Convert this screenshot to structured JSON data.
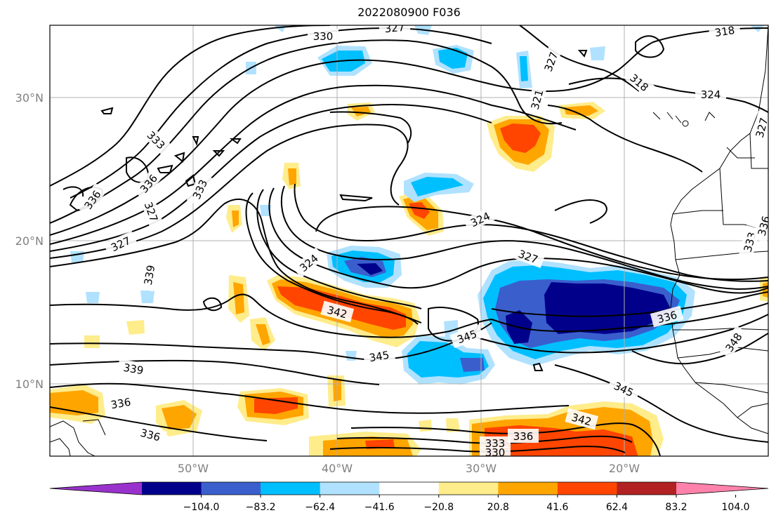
{
  "title": "2022080900 F036",
  "map": {
    "lat_labels": [
      "30°N",
      "20°N",
      "10°N"
    ],
    "lon_labels": [
      "50°W",
      "40°W",
      "30°W",
      "20°W"
    ]
  },
  "colorbar": {
    "colors": [
      "#9932CC",
      "#00008B",
      "#3A5FCD",
      "#00BFFF",
      "#B0E2FF",
      "#FFFFFF",
      "#FFEC8B",
      "#FFA500",
      "#FF4500",
      "#B22222",
      "#FF82AB"
    ],
    "tick_labels": [
      "−104.0",
      "−83.2",
      "−62.4",
      "−41.6",
      "−20.8",
      "20.8",
      "41.6",
      "62.4",
      "83.2",
      "104.0"
    ]
  },
  "contour_labels": [
    "330",
    "327",
    "318",
    "327",
    "321",
    "318",
    "324",
    "333",
    "336",
    "336",
    "327",
    "333",
    "327",
    "324",
    "327",
    "324",
    "339",
    "342",
    "345",
    "345",
    "336",
    "348",
    "333",
    "336",
    "327",
    "339",
    "336",
    "345",
    "342",
    "336",
    "333",
    "330",
    "336"
  ]
}
